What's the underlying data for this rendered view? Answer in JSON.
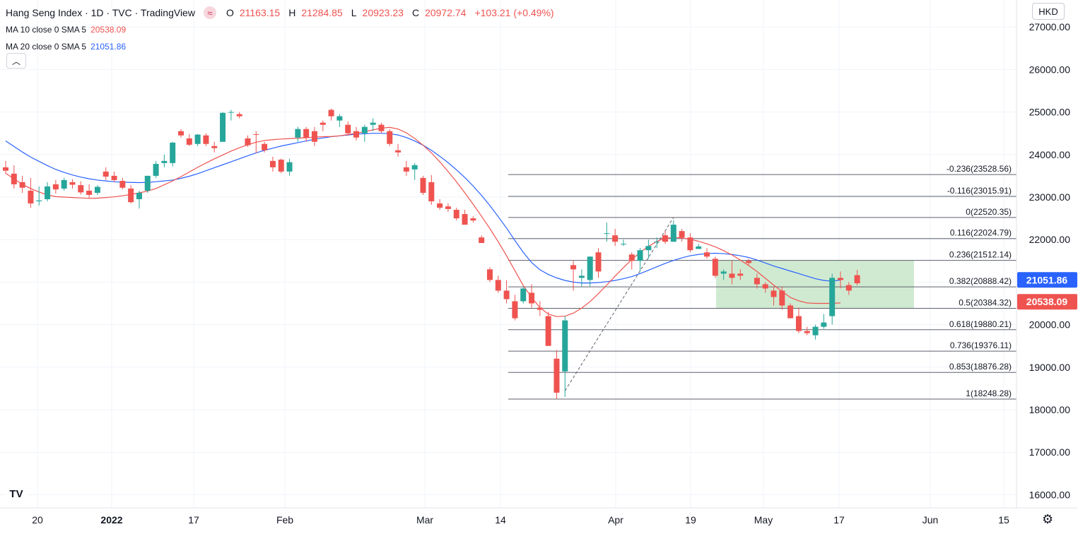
{
  "legend": {
    "title": "Hang Seng Index · 1D · TVC · TradingView",
    "symbol_icon": "wave-approx-icon",
    "o_label": "O",
    "o_value": "21163.15",
    "h_label": "H",
    "h_value": "21284.85",
    "l_label": "L",
    "l_value": "20923.23",
    "c_label": "C",
    "c_value": "20972.74",
    "change": "+103.21 (+0.49%)",
    "ma10_label": "MA 10 close 0 SMA 5",
    "ma10_value": "20538.09",
    "ma20_label": "MA 20 close 0 SMA 5",
    "ma20_value": "21051.86",
    "collapse_icon": "chevron-up-icon"
  },
  "currency": "HKD",
  "settings_icon": "gear-icon",
  "logo_text": "TV",
  "chart_data": {
    "type": "candlestick",
    "colors": {
      "up": "#26a69a",
      "down": "#ef5350",
      "ma10": "#ef5350",
      "ma20": "#2962ff",
      "zone": "#c8e6c9",
      "fib": "#131722"
    },
    "y_axis": {
      "ticks": [
        "27000.00",
        "26000.00",
        "25000.00",
        "24000.00",
        "23000.00",
        "22000.00",
        "21000.00",
        "20000.00",
        "19000.00",
        "18000.00",
        "17000.00",
        "16000.00"
      ],
      "range": [
        15750,
        27350
      ]
    },
    "x_axis": {
      "ticks": [
        "20",
        "2022",
        "17",
        "Feb",
        "Mar",
        "14",
        "Apr",
        "19",
        "May",
        "17",
        "Jun",
        "15"
      ]
    },
    "price_labels": [
      {
        "name": "MA 20",
        "value": "21051.86",
        "color": "#2962ff"
      },
      {
        "name": "MA 10",
        "value": "20538.09",
        "color": "#ef5350"
      }
    ],
    "fib_levels": [
      {
        "label": "-0.236(23528.56)",
        "value": 23528.56
      },
      {
        "label": "-0.116(23015.91)",
        "value": 23015.91
      },
      {
        "label": "0(22520.35)",
        "value": 22520.35
      },
      {
        "label": "0.116(22024.79)",
        "value": 22024.79
      },
      {
        "label": "0.236(21512.14)",
        "value": 21512.14
      },
      {
        "label": "0.382(20888.42)",
        "value": 20888.42
      },
      {
        "label": "0.5(20384.32)",
        "value": 20384.32
      },
      {
        "label": "0.618(19880.21)",
        "value": 19880.21
      },
      {
        "label": "0.736(19376.11)",
        "value": 19376.11
      },
      {
        "label": "0.853(18876.28)",
        "value": 18876.28
      },
      {
        "label": "1(18248.28)",
        "value": 18248.28
      }
    ],
    "fib_anchor": {
      "low": 18248.28,
      "high": 22520.35
    },
    "zone": {
      "top": 21512.14,
      "bottom": 20384.32
    },
    "candles": [
      [
        23700,
        23850,
        23550,
        23620
      ],
      [
        23550,
        23750,
        23200,
        23300
      ],
      [
        23350,
        23500,
        23100,
        23220
      ],
      [
        23150,
        23450,
        22750,
        22850
      ],
      [
        22900,
        23250,
        22800,
        22920
      ],
      [
        22950,
        23350,
        22900,
        23250
      ],
      [
        23300,
        23400,
        23080,
        23180
      ],
      [
        23200,
        23450,
        23150,
        23400
      ],
      [
        23350,
        23420,
        23200,
        23290
      ],
      [
        23280,
        23370,
        23060,
        23110
      ],
      [
        23150,
        23300,
        22980,
        23050
      ],
      [
        23100,
        23280,
        23050,
        23240
      ],
      [
        23600,
        23700,
        23400,
        23480
      ],
      [
        23500,
        23600,
        23350,
        23400
      ],
      [
        23380,
        23450,
        23180,
        23220
      ],
      [
        23200,
        23280,
        22850,
        22880
      ],
      [
        22950,
        23150,
        22730,
        23100
      ],
      [
        23150,
        23500,
        23100,
        23500
      ],
      [
        23500,
        23850,
        23450,
        23780
      ],
      [
        23800,
        24000,
        23700,
        23850
      ],
      [
        23800,
        24300,
        23720,
        24280
      ],
      [
        24550,
        24600,
        24400,
        24450
      ],
      [
        24380,
        24480,
        24200,
        24230
      ],
      [
        24250,
        24480,
        24200,
        24470
      ],
      [
        24450,
        24500,
        24200,
        24250
      ],
      [
        24200,
        24300,
        24050,
        24150
      ],
      [
        24300,
        25000,
        24300,
        24980
      ],
      [
        25000,
        25050,
        24800,
        25000
      ],
      [
        24950,
        25000,
        24850,
        24900
      ],
      [
        24380,
        24450,
        24180,
        24220
      ],
      [
        24480,
        24550,
        24030,
        24470
      ],
      [
        24250,
        24300,
        24050,
        24100
      ],
      [
        23850,
        23950,
        23600,
        23700
      ],
      [
        23880,
        23900,
        23560,
        23600
      ],
      [
        23600,
        23900,
        23500,
        23820
      ],
      [
        24400,
        24650,
        24300,
        24600
      ],
      [
        24600,
        24650,
        24300,
        24400
      ],
      [
        24550,
        24650,
        24200,
        24300
      ],
      [
        24750,
        24800,
        24550,
        24700
      ],
      [
        25050,
        25080,
        24800,
        24900
      ],
      [
        24800,
        24950,
        24650,
        24900
      ],
      [
        24700,
        24780,
        24450,
        24500
      ],
      [
        24550,
        24650,
        24330,
        24400
      ],
      [
        24500,
        24700,
        24300,
        24650
      ],
      [
        24700,
        24850,
        24550,
        24750
      ],
      [
        24700,
        24750,
        24500,
        24550
      ],
      [
        24550,
        24600,
        24200,
        24250
      ],
      [
        24100,
        24250,
        23950,
        24050
      ],
      [
        23700,
        23850,
        23500,
        23600
      ],
      [
        23650,
        23800,
        23400,
        23750
      ],
      [
        23450,
        23500,
        23050,
        23100
      ],
      [
        23350,
        23520,
        22820,
        22900
      ],
      [
        22850,
        22950,
        22700,
        22750
      ],
      [
        22780,
        22850,
        22650,
        22720
      ],
      [
        22700,
        22750,
        22450,
        22500
      ],
      [
        22600,
        22700,
        22400,
        22350
      ],
      [
        22500,
        22550,
        22400,
        22450
      ],
      [
        22050,
        22100,
        21950,
        21920
      ],
      [
        21300,
        21350,
        21000,
        21050
      ],
      [
        21050,
        21150,
        20750,
        20800
      ],
      [
        20800,
        21050,
        20500,
        20600
      ],
      [
        20550,
        20700,
        20100,
        20150
      ],
      [
        20550,
        20900,
        20500,
        20850
      ],
      [
        20750,
        20950,
        20400,
        20500
      ],
      [
        20400,
        20550,
        20200,
        20350
      ],
      [
        20200,
        20300,
        19600,
        19500
      ],
      [
        19200,
        19400,
        18250,
        18400
      ],
      [
        18900,
        20200,
        18300,
        20100
      ],
      [
        21400,
        21500,
        20800,
        21300
      ],
      [
        21100,
        21300,
        20900,
        21150
      ],
      [
        21050,
        21600,
        20900,
        21600
      ],
      [
        21700,
        21800,
        21100,
        21250
      ],
      [
        22150,
        22400,
        21950,
        22150
      ],
      [
        22100,
        22250,
        21850,
        21950
      ],
      [
        21900,
        22000,
        21850,
        21900
      ],
      [
        21650,
        21700,
        21300,
        21500
      ],
      [
        21500,
        21800,
        21250,
        21750
      ],
      [
        21750,
        22000,
        21550,
        21850
      ],
      [
        21950,
        22050,
        21800,
        21950
      ],
      [
        22100,
        22200,
        21900,
        21950
      ],
      [
        21950,
        22450,
        21950,
        22350
      ],
      [
        22200,
        22250,
        21950,
        22050
      ],
      [
        22050,
        22150,
        21700,
        21750
      ],
      [
        21780,
        21900,
        21800,
        21840
      ],
      [
        21700,
        21800,
        21550,
        21600
      ],
      [
        21550,
        21600,
        21100,
        21150
      ],
      [
        21200,
        21300,
        21050,
        21250
      ],
      [
        21200,
        21500,
        20950,
        21100
      ],
      [
        21200,
        21300,
        21050,
        21150
      ],
      [
        21500,
        21550,
        21400,
        21450
      ],
      [
        21100,
        21200,
        20850,
        20950
      ],
      [
        20950,
        21000,
        20750,
        20850
      ],
      [
        20800,
        20900,
        20450,
        20650
      ],
      [
        20800,
        20900,
        20350,
        20450
      ],
      [
        20450,
        20500,
        20200,
        20150
      ],
      [
        20200,
        20400,
        19800,
        19850
      ],
      [
        19850,
        19950,
        19750,
        19800
      ],
      [
        19750,
        20000,
        19650,
        19950
      ],
      [
        19950,
        20250,
        19900,
        20050
      ],
      [
        20200,
        21200,
        20000,
        21100
      ],
      [
        21100,
        21250,
        20850,
        21050
      ],
      [
        20930,
        21000,
        20700,
        20800
      ],
      [
        21163.15,
        21284.85,
        20923.23,
        20972.74
      ]
    ],
    "ma10": [
      23560,
      23430,
      23300,
      23200,
      23120,
      23050,
      23010,
      23000,
      22990,
      22980,
      22970,
      22975,
      22990,
      23005,
      23030,
      23060,
      23100,
      23140,
      23200,
      23290,
      23380,
      23480,
      23590,
      23700,
      23800,
      23900,
      23990,
      24080,
      24160,
      24230,
      24290,
      24330,
      24350,
      24365,
      24375,
      24385,
      24395,
      24410,
      24420,
      24425,
      24440,
      24470,
      24500,
      24540,
      24580,
      24620,
      24640,
      24600,
      24510,
      24380,
      24220,
      24040,
      23830,
      23600,
      23360,
      23100,
      22830,
      22550,
      22260,
      21950,
      21620,
      21270,
      20920,
      20640,
      20400,
      20250,
      20190,
      20200,
      20270,
      20390,
      20540,
      20730,
      20930,
      21140,
      21340,
      21530,
      21700,
      21840,
      21960,
      22030,
      22050,
      22040,
      22010,
      21960,
      21900,
      21830,
      21740,
      21640,
      21520,
      21390,
      21250,
      21090,
      20930,
      20780,
      20640,
      20560,
      20510,
      20500,
      20500,
      20500,
      20510
    ],
    "ma20": [
      24320,
      24190,
      24060,
      23940,
      23840,
      23740,
      23650,
      23580,
      23520,
      23470,
      23430,
      23400,
      23380,
      23360,
      23350,
      23345,
      23340,
      23345,
      23360,
      23380,
      23400,
      23440,
      23490,
      23550,
      23620,
      23690,
      23760,
      23830,
      23900,
      23970,
      24040,
      24100,
      24150,
      24200,
      24240,
      24280,
      24320,
      24360,
      24390,
      24420,
      24440,
      24460,
      24480,
      24490,
      24500,
      24500,
      24490,
      24460,
      24400,
      24320,
      24220,
      24100,
      23960,
      23810,
      23640,
      23460,
      23260,
      23040,
      22800,
      22540,
      22270,
      21980,
      21700,
      21460,
      21290,
      21180,
      21100,
      21040,
      21000,
      20980,
      20980,
      20990,
      21010,
      21040,
      21080,
      21130,
      21200,
      21280,
      21360,
      21440,
      21510,
      21570,
      21620,
      21650,
      21670,
      21680,
      21670,
      21650,
      21620,
      21580,
      21520,
      21450,
      21380,
      21320,
      21260,
      21200,
      21140,
      21080,
      21040,
      21020,
      21050
    ]
  }
}
